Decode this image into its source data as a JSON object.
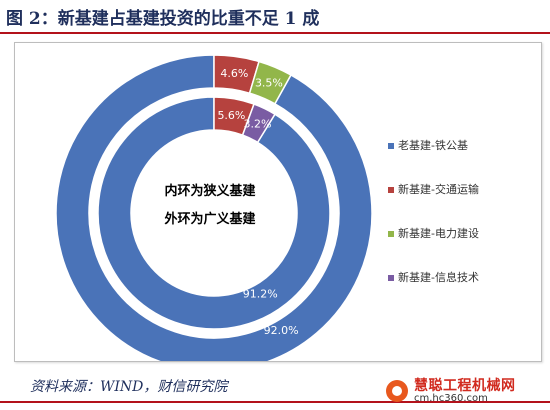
{
  "header": {
    "title": "图 2：新基建占基建投资的比重不足 1 成"
  },
  "footer": {
    "source": "资料来源：WIND，财信研究院"
  },
  "watermark": {
    "name": "慧聪工程机械网",
    "url": "cm.hc360.com"
  },
  "colors": {
    "rule": "#b3121b",
    "title": "#1f2f5c"
  },
  "chart_data": {
    "type": "pie",
    "variant": "nested-donut",
    "center_text": [
      "内环为狭义基建",
      "外环为广义基建"
    ],
    "legend_position": "right",
    "categories": [
      "老基建-铁公基",
      "新基建-交通运输",
      "新基建-电力建设",
      "新基建-信息技术"
    ],
    "colors": [
      "#4a73b8",
      "#b6423e",
      "#92b64a",
      "#7a5ca3"
    ],
    "series": [
      {
        "ring": "outer",
        "values": [
          92.0,
          4.6,
          3.5,
          0.0
        ],
        "labels": [
          "92.0%",
          "4.6%",
          "3.5%",
          ""
        ]
      },
      {
        "ring": "inner",
        "values": [
          91.2,
          5.6,
          0.0,
          3.2
        ],
        "labels": [
          "91.2%",
          "5.6%",
          "",
          "3.2%"
        ]
      }
    ]
  }
}
